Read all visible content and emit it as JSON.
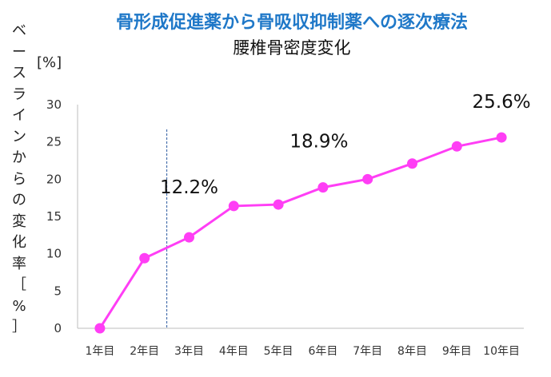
{
  "chart_data": {
    "type": "line",
    "title": "骨形成促進薬から骨吸収抑制薬への逐次療法",
    "subtitle": "腰椎骨密度変化",
    "ylabel": "ベースラインからの変化率［%］",
    "yunit": "[%]",
    "xlabel": "",
    "categories": [
      "1年目",
      "2年目",
      "3年目",
      "4年目",
      "5年目",
      "6年目",
      "7年目",
      "8年目",
      "9年目",
      "10年目"
    ],
    "series": [
      {
        "name": "",
        "values": [
          0,
          9.4,
          12.2,
          16.4,
          16.6,
          18.9,
          20.0,
          22.1,
          24.4,
          25.6
        ]
      }
    ],
    "ylim": [
      0,
      30
    ],
    "yticks": [
      0,
      5,
      10,
      15,
      20,
      25,
      30
    ],
    "annotations": [
      {
        "text": "12.2%",
        "category_index": 2
      },
      {
        "text": "18.9%",
        "category_index": 5
      },
      {
        "text": "25.6%",
        "category_index": 9
      }
    ],
    "divider_after_category": 2,
    "grid": false,
    "legend": "none",
    "colors": {
      "series": "#ff3ef5",
      "divider": "#2c5aa0",
      "title": "#1f78c8"
    }
  }
}
